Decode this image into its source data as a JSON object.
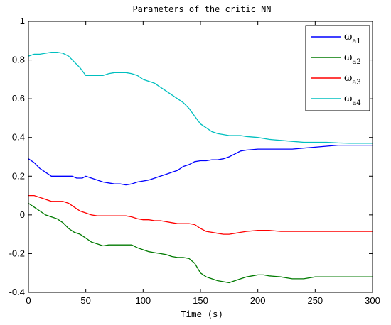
{
  "chart_data": {
    "type": "line",
    "title": "Parameters of the critic NN",
    "xlabel": "Time (s)",
    "ylabel": "",
    "xlim": [
      0,
      300
    ],
    "ylim": [
      -0.4,
      1
    ],
    "xticks": [
      "0",
      "50",
      "100",
      "150",
      "200",
      "250",
      "300"
    ],
    "yticks": [
      "-0.4",
      "-0.2",
      "0",
      "0.2",
      "0.4",
      "0.6",
      "0.8",
      "1"
    ],
    "grid": false,
    "legend_position": "top-right",
    "series": [
      {
        "name": "ωa1",
        "symbol": "ω",
        "subscript": "a1",
        "color": "#0000ff",
        "x": [
          0,
          5,
          10,
          15,
          20,
          25,
          30,
          35,
          38,
          42,
          47,
          50,
          55,
          60,
          65,
          70,
          75,
          80,
          85,
          90,
          95,
          100,
          105,
          110,
          115,
          120,
          125,
          130,
          135,
          140,
          145,
          150,
          155,
          160,
          165,
          170,
          175,
          180,
          185,
          190,
          200,
          210,
          220,
          230,
          240,
          250,
          260,
          270,
          280,
          290,
          300
        ],
        "y": [
          0.29,
          0.27,
          0.24,
          0.22,
          0.2,
          0.2,
          0.2,
          0.2,
          0.2,
          0.19,
          0.19,
          0.2,
          0.19,
          0.18,
          0.17,
          0.165,
          0.16,
          0.16,
          0.155,
          0.16,
          0.17,
          0.175,
          0.18,
          0.19,
          0.2,
          0.21,
          0.22,
          0.23,
          0.25,
          0.26,
          0.275,
          0.28,
          0.28,
          0.285,
          0.285,
          0.29,
          0.3,
          0.315,
          0.33,
          0.335,
          0.34,
          0.34,
          0.34,
          0.34,
          0.345,
          0.35,
          0.355,
          0.36,
          0.36,
          0.36,
          0.36
        ]
      },
      {
        "name": "ωa2",
        "symbol": "ω",
        "subscript": "a2",
        "color": "#007a00",
        "x": [
          0,
          5,
          10,
          15,
          20,
          25,
          30,
          35,
          40,
          45,
          50,
          55,
          60,
          65,
          70,
          75,
          80,
          85,
          90,
          95,
          100,
          105,
          110,
          115,
          120,
          125,
          130,
          135,
          140,
          145,
          150,
          155,
          160,
          165,
          170,
          175,
          180,
          185,
          190,
          195,
          200,
          205,
          210,
          220,
          230,
          240,
          250,
          260,
          270,
          280,
          290,
          300
        ],
        "y": [
          0.06,
          0.04,
          0.02,
          0.0,
          -0.01,
          -0.02,
          -0.04,
          -0.07,
          -0.09,
          -0.1,
          -0.12,
          -0.14,
          -0.15,
          -0.16,
          -0.155,
          -0.155,
          -0.155,
          -0.155,
          -0.155,
          -0.17,
          -0.18,
          -0.19,
          -0.195,
          -0.2,
          -0.205,
          -0.215,
          -0.22,
          -0.22,
          -0.225,
          -0.25,
          -0.3,
          -0.32,
          -0.33,
          -0.34,
          -0.345,
          -0.35,
          -0.34,
          -0.33,
          -0.32,
          -0.315,
          -0.31,
          -0.31,
          -0.315,
          -0.32,
          -0.33,
          -0.33,
          -0.32,
          -0.32,
          -0.32,
          -0.32,
          -0.32,
          -0.32
        ]
      },
      {
        "name": "ωa3",
        "symbol": "ω",
        "subscript": "a3",
        "color": "#ff0000",
        "x": [
          0,
          5,
          10,
          15,
          20,
          25,
          30,
          35,
          40,
          45,
          50,
          55,
          60,
          65,
          70,
          75,
          80,
          85,
          90,
          95,
          100,
          105,
          110,
          115,
          120,
          125,
          130,
          135,
          140,
          145,
          150,
          155,
          160,
          165,
          170,
          175,
          180,
          185,
          190,
          200,
          210,
          220,
          230,
          240,
          250,
          260,
          270,
          280,
          290,
          300
        ],
        "y": [
          0.1,
          0.1,
          0.09,
          0.08,
          0.07,
          0.07,
          0.07,
          0.06,
          0.04,
          0.02,
          0.01,
          0.0,
          -0.005,
          -0.005,
          -0.005,
          -0.005,
          -0.005,
          -0.005,
          -0.01,
          -0.02,
          -0.025,
          -0.025,
          -0.03,
          -0.03,
          -0.035,
          -0.04,
          -0.045,
          -0.045,
          -0.045,
          -0.05,
          -0.07,
          -0.085,
          -0.09,
          -0.095,
          -0.1,
          -0.1,
          -0.095,
          -0.09,
          -0.085,
          -0.08,
          -0.08,
          -0.085,
          -0.085,
          -0.085,
          -0.085,
          -0.085,
          -0.085,
          -0.085,
          -0.085,
          -0.085
        ]
      },
      {
        "name": "ωa4",
        "symbol": "ω",
        "subscript": "a4",
        "color": "#00bfbf",
        "x": [
          0,
          5,
          10,
          15,
          20,
          25,
          30,
          35,
          40,
          45,
          50,
          55,
          60,
          65,
          70,
          75,
          80,
          85,
          90,
          95,
          100,
          105,
          110,
          115,
          120,
          125,
          130,
          135,
          140,
          145,
          150,
          155,
          160,
          165,
          170,
          175,
          180,
          185,
          190,
          200,
          210,
          220,
          230,
          240,
          250,
          260,
          270,
          280,
          290,
          300
        ],
        "y": [
          0.82,
          0.83,
          0.83,
          0.835,
          0.84,
          0.84,
          0.835,
          0.82,
          0.79,
          0.76,
          0.72,
          0.72,
          0.72,
          0.72,
          0.73,
          0.735,
          0.735,
          0.735,
          0.73,
          0.72,
          0.7,
          0.69,
          0.68,
          0.66,
          0.64,
          0.62,
          0.6,
          0.58,
          0.55,
          0.51,
          0.47,
          0.45,
          0.43,
          0.42,
          0.415,
          0.41,
          0.41,
          0.41,
          0.405,
          0.4,
          0.39,
          0.385,
          0.38,
          0.375,
          0.375,
          0.375,
          0.372,
          0.37,
          0.37,
          0.37
        ]
      }
    ]
  }
}
